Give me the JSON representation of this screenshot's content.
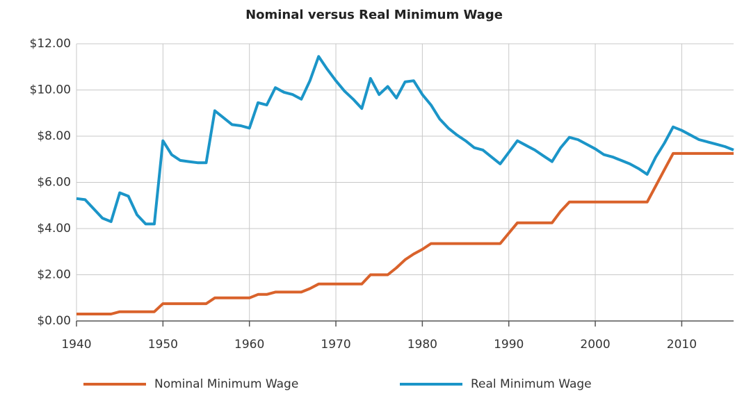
{
  "chart_data": {
    "type": "line",
    "title": "Nominal versus Real Minimum Wage",
    "x": [
      1940,
      1941,
      1942,
      1943,
      1944,
      1945,
      1946,
      1947,
      1948,
      1949,
      1950,
      1951,
      1952,
      1953,
      1954,
      1955,
      1956,
      1957,
      1958,
      1959,
      1960,
      1961,
      1962,
      1963,
      1964,
      1965,
      1966,
      1967,
      1968,
      1969,
      1970,
      1971,
      1972,
      1973,
      1974,
      1975,
      1976,
      1977,
      1978,
      1979,
      1980,
      1981,
      1982,
      1983,
      1984,
      1985,
      1986,
      1987,
      1988,
      1989,
      1990,
      1991,
      1992,
      1993,
      1994,
      1995,
      1996,
      1997,
      1998,
      1999,
      2000,
      2001,
      2002,
      2003,
      2004,
      2005,
      2006,
      2007,
      2008,
      2009,
      2010,
      2011,
      2012,
      2013,
      2014,
      2015,
      2016
    ],
    "series": [
      {
        "name": "Nominal Minimum Wage",
        "color": "#d9622b",
        "values": [
          0.3,
          0.3,
          0.3,
          0.3,
          0.3,
          0.4,
          0.4,
          0.4,
          0.4,
          0.4,
          0.75,
          0.75,
          0.75,
          0.75,
          0.75,
          0.75,
          1.0,
          1.0,
          1.0,
          1.0,
          1.0,
          1.15,
          1.15,
          1.25,
          1.25,
          1.25,
          1.25,
          1.4,
          1.6,
          1.6,
          1.6,
          1.6,
          1.6,
          1.6,
          2.0,
          2.0,
          2.0,
          2.3,
          2.65,
          2.9,
          3.1,
          3.35,
          3.35,
          3.35,
          3.35,
          3.35,
          3.35,
          3.35,
          3.35,
          3.35,
          3.8,
          4.25,
          4.25,
          4.25,
          4.25,
          4.25,
          4.75,
          5.15,
          5.15,
          5.15,
          5.15,
          5.15,
          5.15,
          5.15,
          5.15,
          5.15,
          5.15,
          5.85,
          6.55,
          7.25,
          7.25,
          7.25,
          7.25,
          7.25,
          7.25,
          7.25,
          7.25
        ]
      },
      {
        "name": "Real Minimum Wage",
        "color": "#1b95c8",
        "values": [
          5.3,
          5.25,
          4.85,
          4.45,
          4.3,
          5.55,
          5.4,
          4.6,
          4.2,
          4.2,
          7.8,
          7.2,
          6.95,
          6.9,
          6.85,
          6.85,
          9.1,
          8.8,
          8.5,
          8.45,
          8.35,
          9.45,
          9.35,
          10.1,
          9.9,
          9.8,
          9.6,
          10.4,
          11.45,
          10.9,
          10.4,
          9.95,
          9.6,
          9.2,
          10.5,
          9.8,
          10.15,
          9.65,
          10.35,
          10.4,
          9.8,
          9.35,
          8.75,
          8.35,
          8.05,
          7.8,
          7.5,
          7.4,
          7.1,
          6.8,
          7.3,
          7.8,
          7.6,
          7.4,
          7.15,
          6.9,
          7.5,
          7.95,
          7.85,
          7.65,
          7.45,
          7.2,
          7.1,
          6.95,
          6.8,
          6.6,
          6.35,
          7.1,
          7.7,
          8.4,
          8.25,
          8.05,
          7.85,
          7.75,
          7.65,
          7.55,
          7.4
        ]
      }
    ],
    "xlim": [
      1940,
      2016
    ],
    "xticks": [
      1940,
      1950,
      1960,
      1970,
      1980,
      1990,
      2000,
      2010
    ],
    "ylim": [
      0,
      12
    ],
    "yticks": [
      {
        "value": 0,
        "label": "$0.00"
      },
      {
        "value": 2,
        "label": "$2.00"
      },
      {
        "value": 4,
        "label": "$4.00"
      },
      {
        "value": 6,
        "label": "$6.00"
      },
      {
        "value": 8,
        "label": "$8.00"
      },
      {
        "value": 10,
        "label": "$10.00"
      },
      {
        "value": 12,
        "label": "$12.00"
      }
    ],
    "grid": true,
    "legend": "bottom"
  }
}
